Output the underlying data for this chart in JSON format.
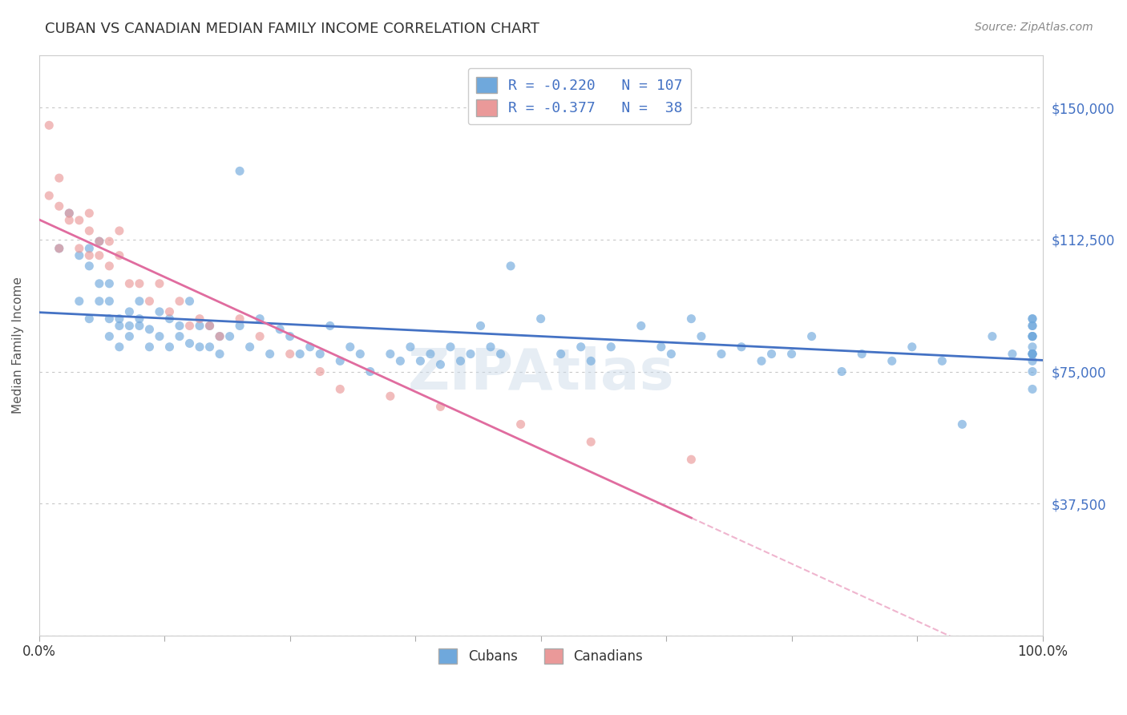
{
  "title": "CUBAN VS CANADIAN MEDIAN FAMILY INCOME CORRELATION CHART",
  "source": "Source: ZipAtlas.com",
  "ylabel": "Median Family Income",
  "yticks": [
    0,
    37500,
    75000,
    112500,
    150000
  ],
  "ytick_labels": [
    "",
    "$37,500",
    "$75,000",
    "$112,500",
    "$150,000"
  ],
  "xlim": [
    0.0,
    1.0
  ],
  "ylim": [
    0,
    165000
  ],
  "cubans_R": -0.22,
  "cubans_N": 107,
  "canadians_R": -0.377,
  "canadians_N": 38,
  "blue_color": "#6fa8dc",
  "pink_color": "#ea9999",
  "blue_line_color": "#4472c4",
  "pink_line_color": "#e06c9f",
  "background_color": "#ffffff",
  "grid_color": "#c8c8c8",
  "title_fontsize": 13,
  "axis_label_fontsize": 11,
  "marker_size": 8,
  "marker_alpha": 0.65,
  "cubans_x": [
    0.02,
    0.03,
    0.04,
    0.04,
    0.05,
    0.05,
    0.05,
    0.06,
    0.06,
    0.06,
    0.07,
    0.07,
    0.07,
    0.07,
    0.08,
    0.08,
    0.08,
    0.09,
    0.09,
    0.09,
    0.1,
    0.1,
    0.1,
    0.11,
    0.11,
    0.12,
    0.12,
    0.13,
    0.13,
    0.14,
    0.14,
    0.15,
    0.15,
    0.16,
    0.16,
    0.17,
    0.17,
    0.18,
    0.18,
    0.19,
    0.2,
    0.2,
    0.21,
    0.22,
    0.23,
    0.24,
    0.25,
    0.26,
    0.27,
    0.28,
    0.29,
    0.3,
    0.31,
    0.32,
    0.33,
    0.35,
    0.36,
    0.37,
    0.38,
    0.39,
    0.4,
    0.41,
    0.42,
    0.43,
    0.44,
    0.45,
    0.46,
    0.47,
    0.5,
    0.52,
    0.54,
    0.55,
    0.57,
    0.6,
    0.62,
    0.63,
    0.65,
    0.66,
    0.68,
    0.7,
    0.72,
    0.73,
    0.75,
    0.77,
    0.8,
    0.82,
    0.85,
    0.87,
    0.9,
    0.92,
    0.95,
    0.97,
    0.99,
    0.99,
    0.99,
    0.99,
    0.99,
    0.99,
    0.99,
    0.99,
    0.99,
    0.99,
    0.99,
    0.99,
    0.99,
    0.99,
    0.99
  ],
  "cubans_y": [
    110000,
    120000,
    108000,
    95000,
    105000,
    110000,
    90000,
    100000,
    112000,
    95000,
    100000,
    90000,
    85000,
    95000,
    90000,
    88000,
    82000,
    92000,
    88000,
    85000,
    95000,
    90000,
    88000,
    87000,
    82000,
    92000,
    85000,
    90000,
    82000,
    88000,
    85000,
    83000,
    95000,
    88000,
    82000,
    82000,
    88000,
    85000,
    80000,
    85000,
    132000,
    88000,
    82000,
    90000,
    80000,
    87000,
    85000,
    80000,
    82000,
    80000,
    88000,
    78000,
    82000,
    80000,
    75000,
    80000,
    78000,
    82000,
    78000,
    80000,
    77000,
    82000,
    78000,
    80000,
    88000,
    82000,
    80000,
    105000,
    90000,
    80000,
    82000,
    78000,
    82000,
    88000,
    82000,
    80000,
    90000,
    85000,
    80000,
    82000,
    78000,
    80000,
    80000,
    85000,
    75000,
    80000,
    78000,
    82000,
    78000,
    60000,
    85000,
    80000,
    90000,
    88000,
    85000,
    80000,
    82000,
    85000,
    88000,
    80000,
    90000,
    78000,
    85000,
    80000,
    80000,
    75000,
    70000
  ],
  "canadians_x": [
    0.01,
    0.01,
    0.02,
    0.02,
    0.02,
    0.03,
    0.03,
    0.04,
    0.04,
    0.05,
    0.05,
    0.05,
    0.06,
    0.06,
    0.07,
    0.07,
    0.08,
    0.08,
    0.09,
    0.1,
    0.11,
    0.12,
    0.13,
    0.14,
    0.15,
    0.16,
    0.17,
    0.18,
    0.2,
    0.22,
    0.25,
    0.28,
    0.3,
    0.35,
    0.4,
    0.48,
    0.55,
    0.65
  ],
  "canadians_y": [
    145000,
    125000,
    130000,
    110000,
    122000,
    118000,
    120000,
    118000,
    110000,
    115000,
    108000,
    120000,
    112000,
    108000,
    112000,
    105000,
    108000,
    115000,
    100000,
    100000,
    95000,
    100000,
    92000,
    95000,
    88000,
    90000,
    88000,
    85000,
    90000,
    85000,
    80000,
    75000,
    70000,
    68000,
    65000,
    60000,
    55000,
    50000
  ],
  "legend_r_label_1": "R = -0.220   N = 107",
  "legend_r_label_2": "R = -0.377   N =  38",
  "legend_bottom_1": "Cubans",
  "legend_bottom_2": "Canadians"
}
